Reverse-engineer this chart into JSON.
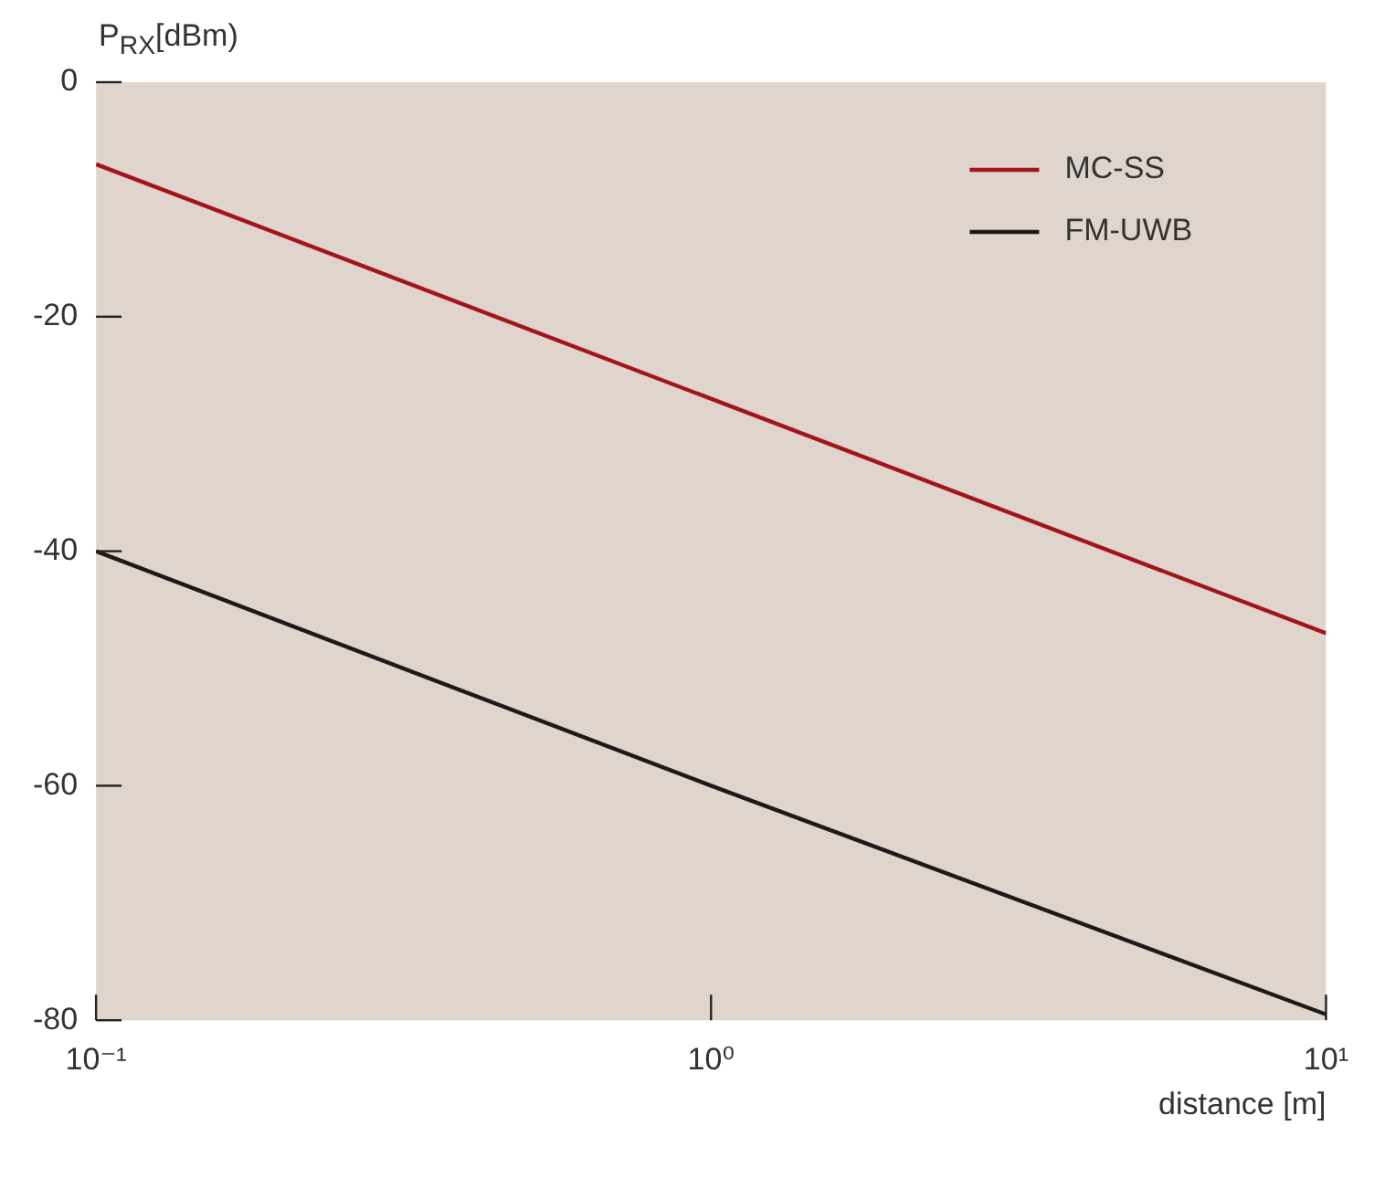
{
  "chart_data": {
    "type": "line",
    "ylabel": "P$_{RX}$[dBm)",
    "xlabel": "distance [m]",
    "log": "x",
    "x": [
      0.1,
      1,
      10
    ],
    "series": [
      {
        "name": "MC-SS",
        "color": "#a3141c",
        "values": [
          -7,
          -27,
          -47
        ]
      },
      {
        "name": "FM-UWB",
        "color": "#1e1a1a",
        "values": [
          -40,
          -60,
          -79.5
        ]
      }
    ],
    "xlim": [
      0.1,
      10
    ],
    "xticks": [
      {
        "value": 0.1,
        "label": "10⁻¹"
      },
      {
        "value": 1,
        "label": "10⁰"
      },
      {
        "value": 10,
        "label": "10¹"
      }
    ],
    "ylim": [
      -80,
      0
    ],
    "yticks": [
      -80,
      -60,
      -40,
      -20,
      0
    ],
    "grid": false,
    "legend": "top right",
    "marker": "none",
    "line_style": "solid"
  }
}
